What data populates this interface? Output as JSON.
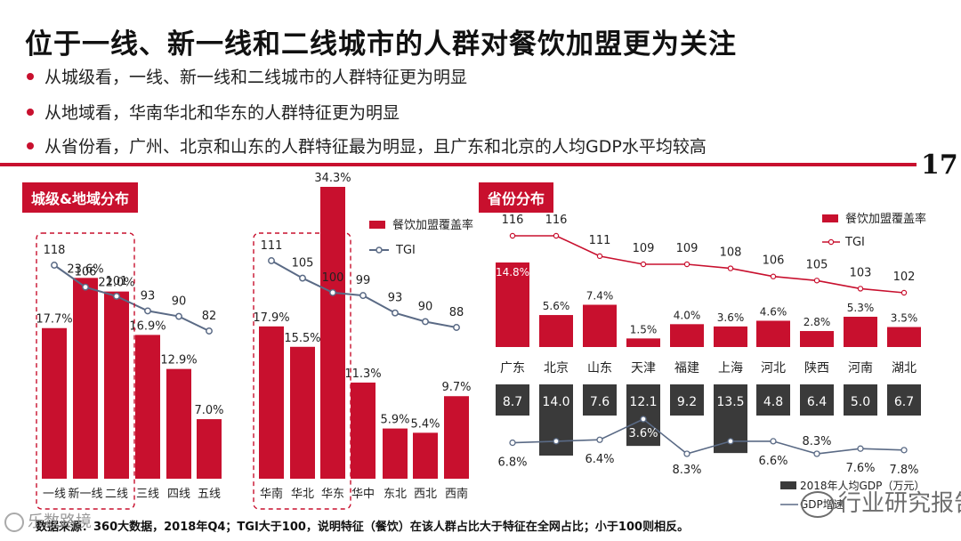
{
  "title": "位于一线、新一线和二线城市的人群对餐饮加盟更为关注",
  "bullets": [
    "从城级看，一线、新一线和二线城市的人群特征更为明显",
    "从地域看，华南华北和华东的人群特征更为明显",
    "从省份看，广州、北京和山东的人群特征最为明显，且广东和北京的人均GDP水平均较高"
  ],
  "page_number": "17",
  "sections": {
    "city_region": "城级&地域分布",
    "province": "省份分布"
  },
  "footer": "数据来源：360大数据，2018年Q4；TGI大于100，说明特征（餐饮）在该人群占比大于特征在全网占比；小于100则相反。",
  "watermarks": {
    "brand": "行业研究报告",
    "corner": "乐数路境"
  },
  "colors": {
    "accent": "#c8102e",
    "tgi_line": "#5a6a85",
    "gdp_bar": "#3a3a3a"
  },
  "chart_data": [
    {
      "type": "bar",
      "categories": [
        "一线",
        "新一线",
        "二线",
        "三线",
        "四线",
        "五线"
      ],
      "series": [
        {
          "name": "餐饮加盟覆盖率",
          "values": [
            17.7,
            23.6,
            22.0,
            16.9,
            12.9,
            7.0
          ],
          "labels": [
            "17.7%",
            "23.6%",
            "22.0%",
            "16.9%",
            "12.9%",
            "7.0%"
          ]
        },
        {
          "name": "TGI",
          "type": "line",
          "values": [
            118,
            106,
            101,
            93,
            90,
            82
          ]
        }
      ],
      "highlight": [
        "一线",
        "新一线",
        "二线"
      ],
      "legend": "top-right"
    },
    {
      "type": "bar",
      "categories": [
        "华南",
        "华北",
        "华东",
        "华中",
        "东北",
        "西北",
        "西南"
      ],
      "series": [
        {
          "name": "餐饮加盟覆盖率",
          "values": [
            17.9,
            15.5,
            34.3,
            11.3,
            5.9,
            5.4,
            9.7
          ],
          "labels": [
            "17.9%",
            "15.5%",
            "34.3%",
            "11.3%",
            "5.9%",
            "5.4%",
            "9.7%"
          ]
        },
        {
          "name": "TGI",
          "type": "line",
          "values": [
            111,
            105,
            100,
            99,
            93,
            90,
            88
          ]
        }
      ],
      "highlight": [
        "华南",
        "华北",
        "华东"
      ],
      "legend": "top-right"
    },
    {
      "type": "bar",
      "categories": [
        "广东",
        "北京",
        "山东",
        "天津",
        "福建",
        "上海",
        "河北",
        "陕西",
        "河南",
        "湖北"
      ],
      "series": [
        {
          "name": "餐饮加盟覆盖率",
          "values": [
            14.8,
            5.6,
            7.4,
            1.5,
            4.0,
            3.6,
            4.6,
            2.8,
            5.3,
            3.5
          ],
          "labels": [
            "14.8%",
            "5.6%",
            "7.4%",
            "1.5%",
            "4.0%",
            "3.6%",
            "4.6%",
            "2.8%",
            "5.3%",
            "3.5%"
          ]
        },
        {
          "name": "TGI",
          "type": "line",
          "values": [
            116,
            116,
            111,
            109,
            109,
            108,
            106,
            105,
            103,
            102
          ]
        }
      ],
      "legend": "top-right"
    },
    {
      "type": "bar",
      "categories": [
        "广东",
        "北京",
        "山东",
        "天津",
        "福建",
        "上海",
        "河北",
        "陕西",
        "河南",
        "湖北"
      ],
      "series": [
        {
          "name": "2018年人均GDP（万元）",
          "values": [
            8.7,
            14.0,
            7.6,
            12.1,
            9.2,
            13.5,
            4.8,
            6.4,
            5.0,
            6.7
          ],
          "labels": [
            "8.7",
            "14.0",
            "7.6",
            "12.1",
            "9.2",
            "13.5",
            "4.8",
            "6.4",
            "5.0",
            "6.7"
          ]
        },
        {
          "name": "GDP增速",
          "type": "line",
          "values": [
            6.8,
            6.6,
            6.4,
            3.6,
            8.3,
            6.6,
            6.6,
            8.3,
            7.6,
            7.8
          ],
          "labels": [
            "6.8%",
            "6.6%",
            "6.4%",
            "3.6%",
            "8.3%",
            "6.6%",
            "6.6%",
            "8.3%",
            "7.6%",
            "7.8%"
          ]
        }
      ],
      "legend": "bottom-right"
    }
  ]
}
